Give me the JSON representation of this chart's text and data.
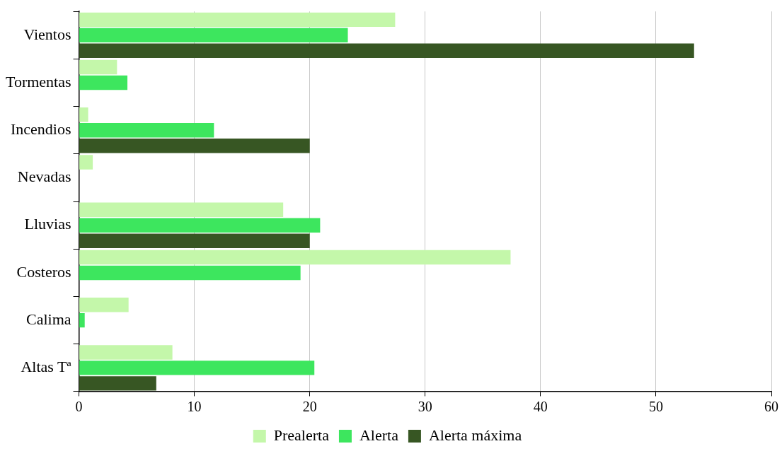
{
  "chart_data": {
    "type": "bar",
    "orientation": "horizontal",
    "categories": [
      "Vientos",
      "Tormentas",
      "Incendios",
      "Nevadas",
      "Lluvias",
      "Costeros",
      "Calima",
      "Altas Tª"
    ],
    "series": [
      {
        "name": "Prealerta",
        "color": "#c4f7aa",
        "values": [
          27.4,
          3.3,
          0.8,
          1.2,
          17.7,
          37.4,
          4.3,
          8.1
        ]
      },
      {
        "name": "Alerta",
        "color": "#3de65e",
        "values": [
          23.3,
          4.2,
          11.7,
          null,
          20.9,
          19.2,
          0.5,
          20.4
        ]
      },
      {
        "name": "Alerta máxima",
        "color": "#375623",
        "values": [
          53.3,
          null,
          20.0,
          null,
          20.0,
          null,
          null,
          6.7
        ]
      }
    ],
    "xlim": [
      0,
      60
    ],
    "xticks": [
      0,
      10,
      20,
      30,
      40,
      50,
      60
    ],
    "grid": "x",
    "legend": "bottom"
  }
}
